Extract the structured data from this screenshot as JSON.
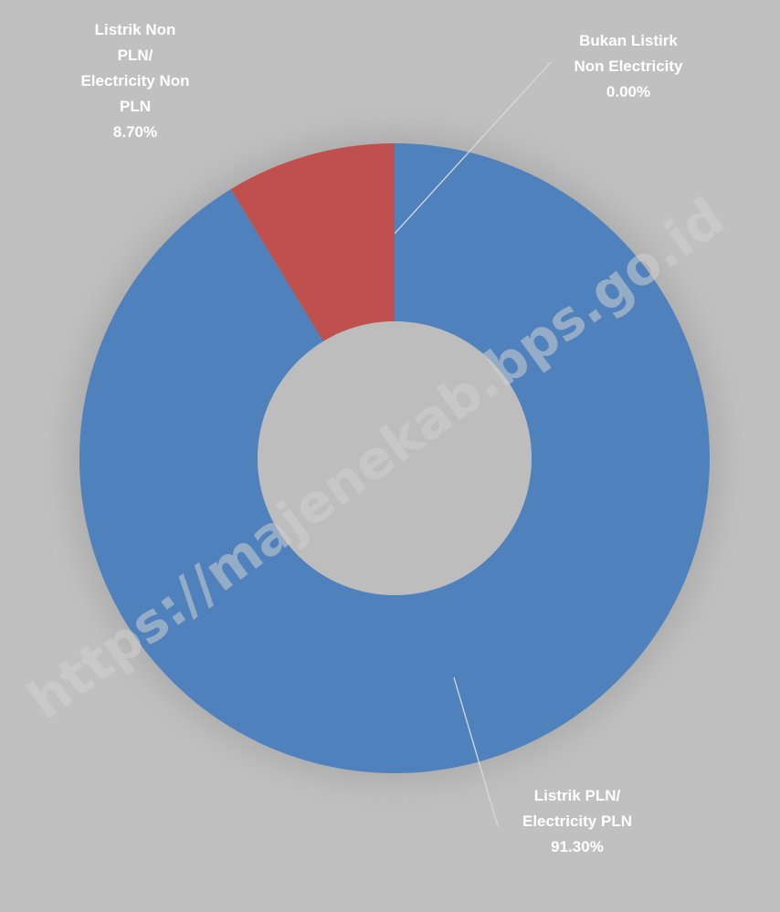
{
  "chart_data": {
    "type": "pie",
    "variant": "donut",
    "title": "",
    "slices": [
      {
        "label_lines": [
          "Bukan Listirk",
          "Non Electricity"
        ],
        "value": 0.0,
        "display": "0.00%",
        "color": "#4f81bd"
      },
      {
        "label_lines": [
          "Listrik PLN/",
          "Electricity PLN"
        ],
        "value": 91.3,
        "display": "91.30%",
        "color": "#4f81bd"
      },
      {
        "label_lines": [
          "Listrik Non",
          "PLN/",
          "Electricity Non",
          "PLN"
        ],
        "value": 8.7,
        "display": "8.70%",
        "color": "#c0504d"
      }
    ],
    "start_angle": "12 o'clock",
    "direction": "clockwise",
    "legend": "none",
    "background": "#c0c0c0"
  },
  "watermark": "https://majenekab.bps.go.id"
}
